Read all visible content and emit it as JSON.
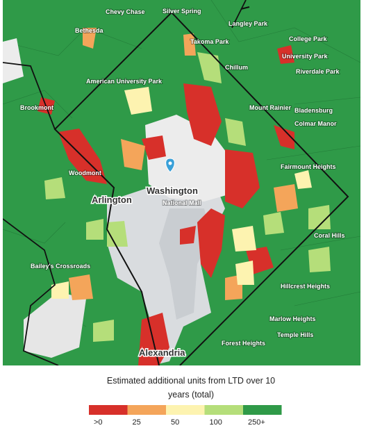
{
  "map": {
    "labels": [
      "Chevy Chase",
      "Silver Spring",
      "Bethesda",
      "Takoma Park",
      "Langley Park",
      "College Park",
      "University Park",
      "Chillum",
      "Riverdale Park",
      "Mount Rainier",
      "Bladensburg",
      "Brookmont",
      "American University Park",
      "Colmar Manor",
      "Fairmount Heights",
      "Washington",
      "Arlington",
      "Alexandria",
      "Woodmont",
      "Bailey's Crossroads",
      "Hillcrest Heights",
      "Marlow Heights",
      "Forest Heights",
      "Coral Hills",
      "National Mall",
      "Temple Hills"
    ]
  },
  "legend": {
    "title": "Estimated additional units from LTD over 10 years (total)",
    "bins": [
      {
        "color": "#d7302a",
        "label": ">0"
      },
      {
        "color": "#f4a55a",
        "label": "25"
      },
      {
        "color": "#fdf3b0",
        "label": "50"
      },
      {
        "color": "#b5de7a",
        "label": "100"
      },
      {
        "color": "#2f9a48",
        "label": "250+"
      }
    ]
  }
}
